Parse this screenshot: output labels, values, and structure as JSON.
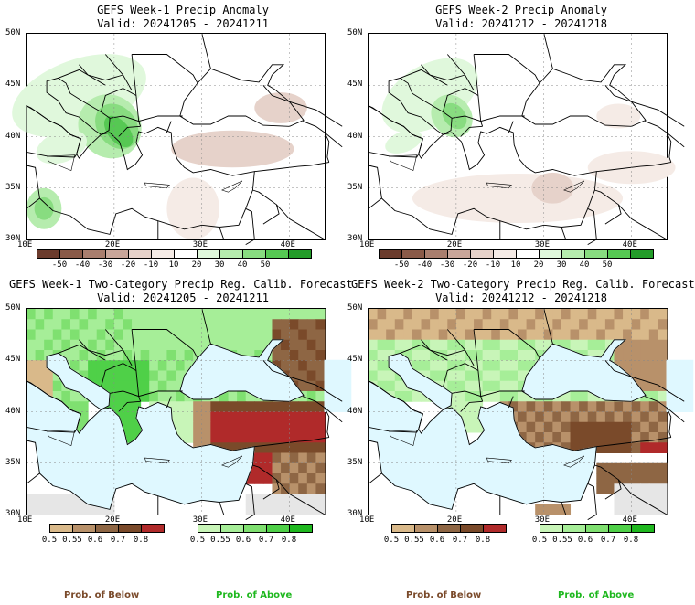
{
  "chart_data": [
    {
      "type": "heatmap",
      "title": "GEFS Week-1 Precip Anomaly",
      "subtitle": "Valid: 20241205 - 20241211",
      "x_ticks": [
        "10E",
        "20E",
        "30E",
        "40E"
      ],
      "y_ticks": [
        "50N",
        "45N",
        "40N",
        "35N",
        "30N"
      ],
      "xlim": [
        10,
        44
      ],
      "ylim": [
        30,
        50
      ],
      "colorbar": {
        "labels": [
          "-50",
          "-40",
          "-30",
          "-20",
          "-10",
          "10",
          "20",
          "30",
          "40",
          "50"
        ],
        "colors": [
          "#6b3b2c",
          "#8a5a48",
          "#a97e6e",
          "#c9a69a",
          "#e6d2ca",
          "#f5ebe6",
          "#ffffff",
          "#e0f8dc",
          "#b6ecae",
          "#88dc80",
          "#56c853",
          "#239c29"
        ]
      }
    },
    {
      "type": "heatmap",
      "title": "GEFS Week-2 Precip Anomaly",
      "subtitle": "Valid: 20241212 - 20241218",
      "x_ticks": [
        "10E",
        "20E",
        "30E",
        "40E"
      ],
      "y_ticks": [
        "50N",
        "45N",
        "40N",
        "35N",
        "30N"
      ],
      "xlim": [
        10,
        44
      ],
      "ylim": [
        30,
        50
      ],
      "colorbar": {
        "labels": [
          "-50",
          "-40",
          "-30",
          "-20",
          "-10",
          "10",
          "20",
          "30",
          "40",
          "50"
        ],
        "colors": [
          "#6b3b2c",
          "#8a5a48",
          "#a97e6e",
          "#c9a69a",
          "#e6d2ca",
          "#f5ebe6",
          "#ffffff",
          "#e0f8dc",
          "#b6ecae",
          "#88dc80",
          "#56c853",
          "#239c29"
        ]
      }
    },
    {
      "type": "heatmap",
      "title": "GEFS Week-1 Two-Category Precip Reg. Calib. Forecast",
      "subtitle": "Valid: 20241205 - 20241211",
      "x_ticks": [
        "10E",
        "20E",
        "30E",
        "40E"
      ],
      "y_ticks": [
        "50N",
        "45N",
        "40N",
        "35N",
        "30N"
      ],
      "xlim": [
        10,
        44
      ],
      "ylim": [
        30,
        50
      ],
      "below_colorbar": {
        "labels": [
          "0.5",
          "0.55",
          "0.6",
          "0.7",
          "0.8"
        ],
        "colors": [
          "#d9b98a",
          "#b8916a",
          "#8e6644",
          "#7a4a2a",
          "#b02a2a"
        ]
      },
      "above_colorbar": {
        "labels": [
          "0.5",
          "0.55",
          "0.6",
          "0.7",
          "0.8"
        ],
        "colors": [
          "#c8f5b8",
          "#a6ee98",
          "#7fe070",
          "#4fd048",
          "#1fb81f"
        ]
      }
    },
    {
      "type": "heatmap",
      "title": "GEFS Week-2 Two-Category Precip Reg. Calib. Forecast",
      "subtitle": "Valid: 20241212 - 20241218",
      "x_ticks": [
        "10E",
        "20E",
        "30E",
        "40E"
      ],
      "y_ticks": [
        "50N",
        "45N",
        "40N",
        "35N",
        "30N"
      ],
      "xlim": [
        10,
        44
      ],
      "ylim": [
        30,
        50
      ],
      "below_colorbar": {
        "labels": [
          "0.5",
          "0.55",
          "0.6",
          "0.7",
          "0.8"
        ],
        "colors": [
          "#d9b98a",
          "#b8916a",
          "#8e6644",
          "#7a4a2a",
          "#b02a2a"
        ]
      },
      "above_colorbar": {
        "labels": [
          "0.5",
          "0.55",
          "0.6",
          "0.7",
          "0.8"
        ],
        "colors": [
          "#c8f5b8",
          "#a6ee98",
          "#7fe070",
          "#4fd048",
          "#1fb81f"
        ]
      }
    }
  ],
  "footer": {
    "below_label": "Prob. of Below",
    "above_label": "Prob. of Above",
    "below_color": "#7a4a2a",
    "above_color": "#1fb81f"
  },
  "colors": {
    "sea": "#dff8ff",
    "land_white": "#ffffff",
    "na_gray": "#e6e6e6"
  }
}
